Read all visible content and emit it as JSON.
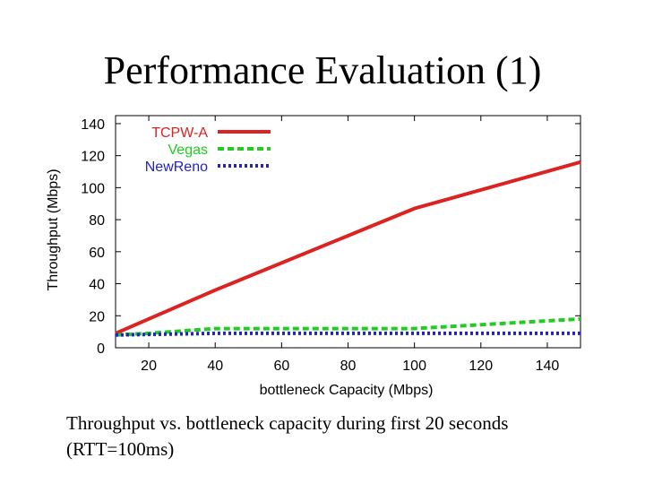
{
  "slide": {
    "title": "Performance Evaluation (1)",
    "caption_line1": "Throughput vs. bottleneck capacity during first 20 seconds",
    "caption_line2": "(RTT=100ms)"
  },
  "chart_data": {
    "type": "line",
    "title": "",
    "xlabel": "bottleneck Capacity (Mbps)",
    "ylabel": "Throughput (Mbps)",
    "xlim": [
      10,
      150
    ],
    "ylim": [
      0,
      145
    ],
    "xticks": [
      20,
      40,
      60,
      80,
      100,
      120,
      140
    ],
    "yticks": [
      0,
      20,
      40,
      60,
      80,
      100,
      120,
      140
    ],
    "legend_position": "top-left",
    "series": [
      {
        "name": "TCPW-A",
        "color": "#dd2222",
        "style": "solid",
        "x": [
          10,
          40,
          80,
          100,
          150
        ],
        "y": [
          9,
          36,
          70,
          87,
          116
        ]
      },
      {
        "name": "Vegas",
        "color": "#22cc22",
        "style": "dashed",
        "x": [
          10,
          20,
          40,
          60,
          80,
          100,
          150
        ],
        "y": [
          8,
          9,
          12,
          12,
          12,
          12,
          18
        ]
      },
      {
        "name": "NewReno",
        "color": "#2222cc",
        "style": "dotted",
        "x": [
          10,
          40,
          80,
          100,
          120,
          150
        ],
        "y": [
          8,
          9,
          9,
          9,
          9,
          9
        ]
      }
    ]
  }
}
